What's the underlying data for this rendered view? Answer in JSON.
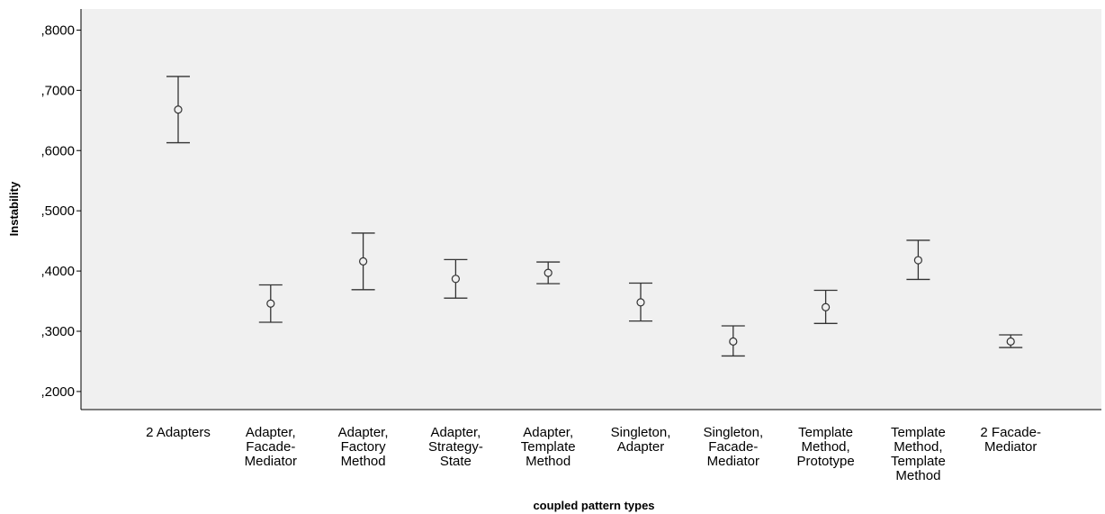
{
  "chart_data": {
    "type": "errorbar",
    "xlabel": "coupled pattern types",
    "ylabel": "Instability",
    "ylim": [
      0.17,
      0.835
    ],
    "y_ticks": [
      0.2,
      0.3,
      0.4,
      0.5,
      0.6,
      0.7,
      0.8
    ],
    "y_tick_labels": [
      ",2000",
      ",3000",
      ",4000",
      ",5000",
      ",6000",
      ",7000",
      ",8000"
    ],
    "grid": false,
    "categories": [
      [
        "2 Adapters"
      ],
      [
        "Adapter,",
        "Facade-",
        "Mediator"
      ],
      [
        "Adapter,",
        "Factory",
        "Method"
      ],
      [
        "Adapter,",
        "Strategy-",
        "State"
      ],
      [
        "Adapter,",
        "Template",
        "Method"
      ],
      [
        "Singleton,",
        "Adapter"
      ],
      [
        "Singleton,",
        "Facade-",
        "Mediator"
      ],
      [
        "Template",
        "Method,",
        "Prototype"
      ],
      [
        "Template",
        "Method,",
        "Template",
        "Method"
      ],
      [
        "2 Facade-",
        "Mediator"
      ]
    ],
    "means": [
      0.668,
      0.346,
      0.416,
      0.387,
      0.397,
      0.348,
      0.283,
      0.34,
      0.418,
      0.283
    ],
    "lower": [
      0.613,
      0.315,
      0.369,
      0.355,
      0.379,
      0.317,
      0.259,
      0.313,
      0.386,
      0.273
    ],
    "upper": [
      0.723,
      0.377,
      0.463,
      0.419,
      0.415,
      0.38,
      0.309,
      0.368,
      0.451,
      0.294
    ],
    "colors": {
      "plot_bg": "#f0f0f0",
      "marks": "#333333",
      "axis": "#000000"
    }
  }
}
